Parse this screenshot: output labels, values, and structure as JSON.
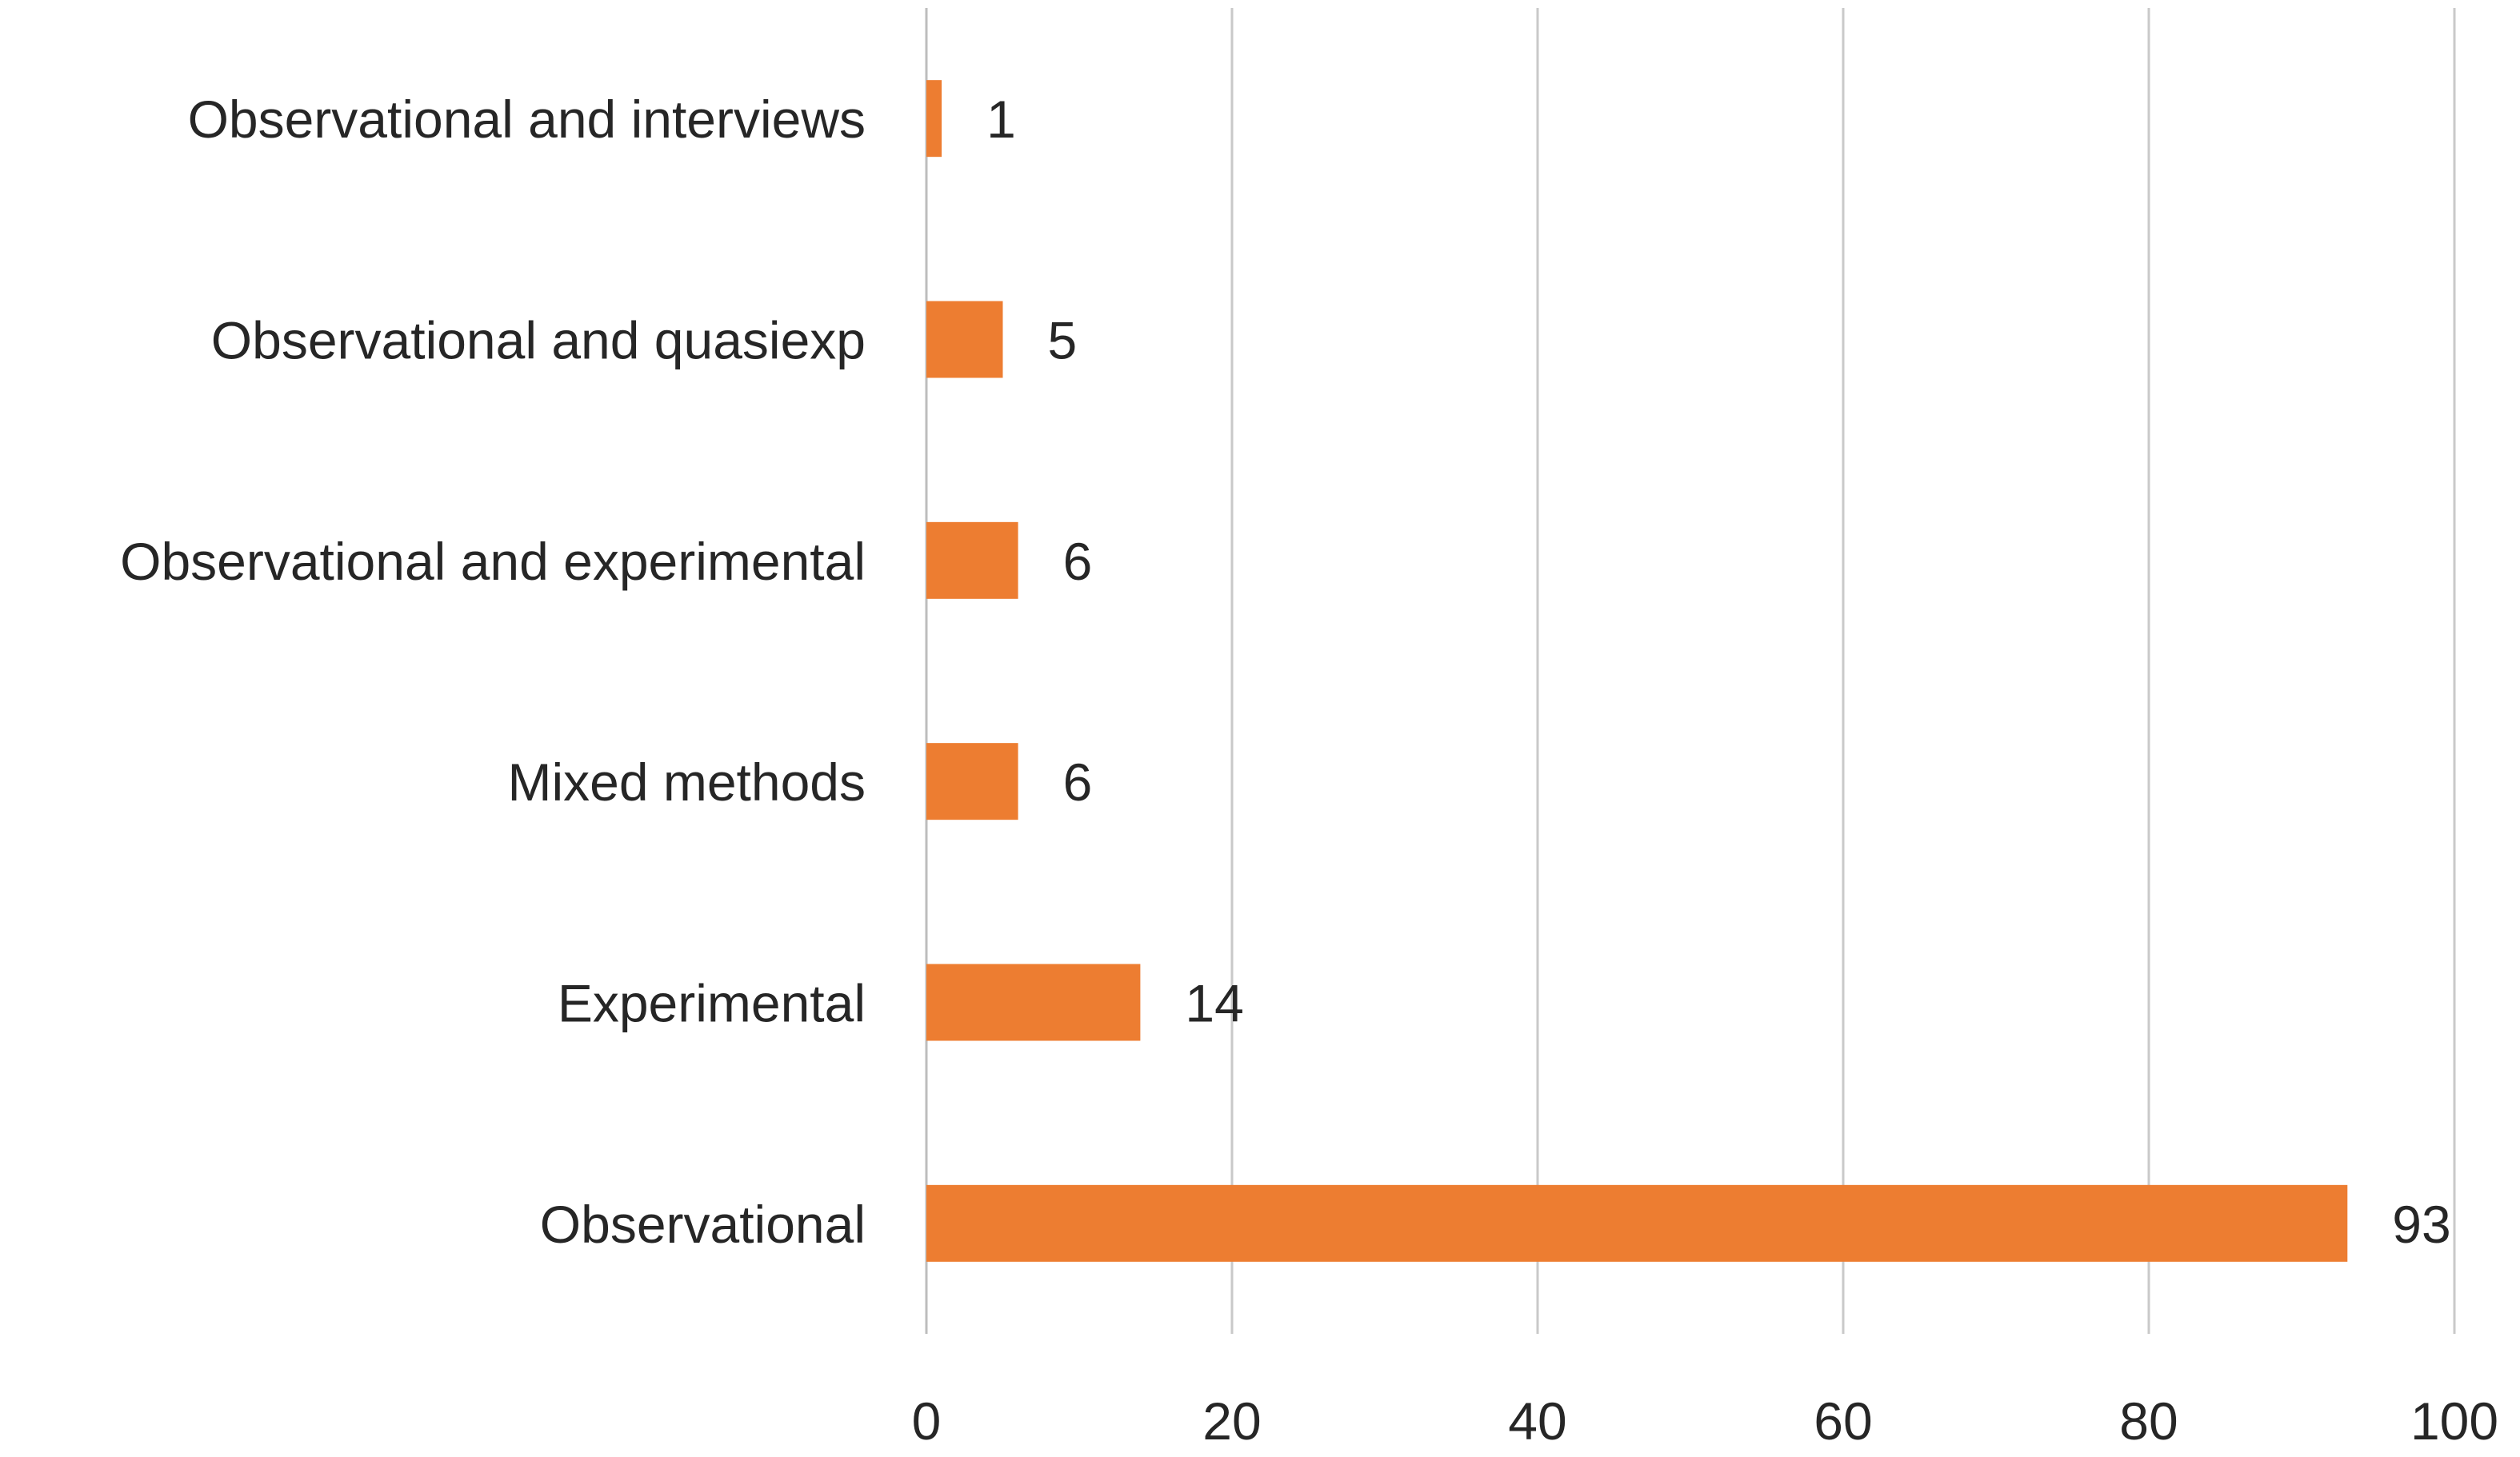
{
  "chart_data": {
    "type": "bar",
    "orientation": "horizontal",
    "title": "",
    "xlabel": "",
    "ylabel": "",
    "categories": [
      "Observational and interviews",
      "Observational and quasiexp",
      "Observational and experimental",
      "Mixed methods",
      "Experimental",
      "Observational"
    ],
    "values": [
      1,
      5,
      6,
      6,
      14,
      93
    ],
    "xlim": [
      0,
      100
    ],
    "xticks": [
      0,
      20,
      40,
      60,
      80,
      100
    ],
    "grid": "vertical",
    "legend": "none",
    "data_labels": true,
    "bar_color": "#ED7D31"
  }
}
